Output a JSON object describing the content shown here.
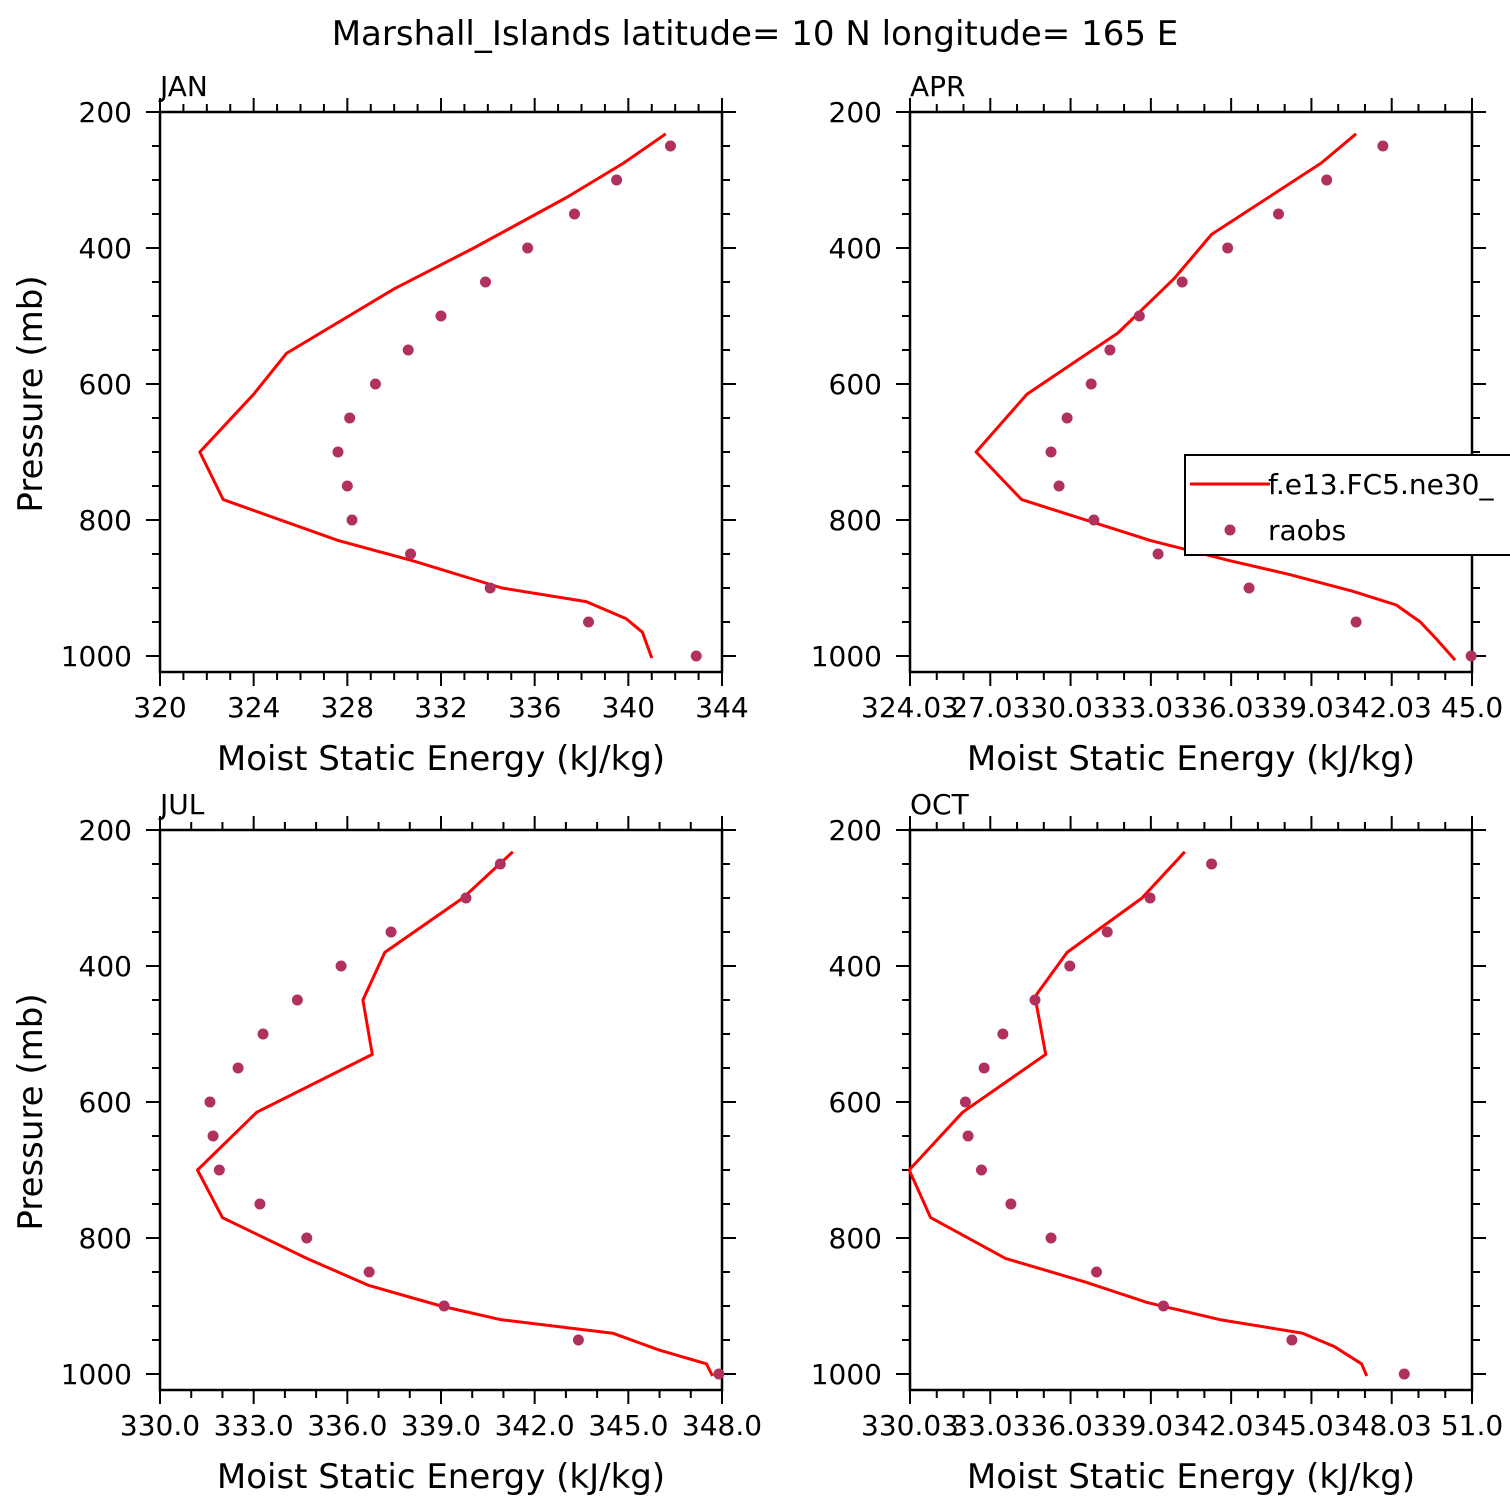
{
  "figure_title": "Marshall_Islands  latitude= 10 N longitude= 165 E",
  "legend": {
    "model_label": "f.e13.FC5.ne30_",
    "obs_label": "raobs"
  },
  "colors": {
    "model": "#ff0000",
    "obs": "#b03060",
    "axis": "#000000"
  },
  "chart_data": [
    {
      "type": "line",
      "title": "JAN",
      "xlabel": "Moist Static Energy (kJ/kg)",
      "ylabel": "Pressure (mb)",
      "xlim": [
        320,
        344
      ],
      "ylim": [
        200,
        1000
      ],
      "x_ticks": [
        320,
        324,
        328,
        332,
        336,
        340,
        344
      ],
      "x_tick_labels": [
        "320",
        "324",
        "328",
        "332",
        "336",
        "340",
        "344"
      ],
      "y_ticks": [
        200,
        400,
        600,
        800,
        1000
      ],
      "y_tick_labels": [
        "200",
        "400",
        "600",
        "800",
        "1000"
      ],
      "series": [
        {
          "name": "f.e13.FC5.ne30_",
          "style": "line",
          "x": [
            341.6,
            339.8,
            337.4,
            333.4,
            330.0,
            325.4,
            324.0,
            321.7,
            322.7,
            327.6,
            330.8,
            334.6,
            338.2,
            339.9,
            340.6,
            341.0
          ],
          "y": [
            232,
            275,
            325,
            400,
            460,
            555,
            615,
            700,
            770,
            830,
            860,
            900,
            920,
            945,
            965,
            1003
          ]
        },
        {
          "name": "raobs",
          "style": "markers",
          "x": [
            341.8,
            339.5,
            337.7,
            335.7,
            333.9,
            332.0,
            330.6,
            329.2,
            328.1,
            327.6,
            328.0,
            328.2,
            330.7,
            334.1,
            338.3,
            342.9
          ],
          "y": [
            250,
            300,
            350,
            400,
            450,
            500,
            550,
            600,
            650,
            700,
            750,
            800,
            850,
            900,
            950,
            1000
          ]
        }
      ]
    },
    {
      "type": "line",
      "title": "APR",
      "xlabel": "Moist Static Energy (kJ/kg)",
      "ylabel": "",
      "xlim": [
        324.03,
        345.03
      ],
      "ylim": [
        200,
        1000
      ],
      "x_ticks": [
        324.03,
        327.03,
        330.03,
        333.03,
        336.03,
        339.03,
        342.03,
        345.03
      ],
      "x_tick_labels": [
        "324.03",
        "27.03",
        "30.03",
        "33.03",
        "36.03",
        "39.03",
        "42.03",
        "45.0"
      ],
      "y_ticks": [
        200,
        400,
        600,
        800,
        1000
      ],
      "y_tick_labels": [
        "200",
        "400",
        "600",
        "800",
        "1000"
      ],
      "series": [
        {
          "name": "f.e13.FC5.ne30_",
          "style": "line",
          "x": [
            340.7,
            339.4,
            335.3,
            333.9,
            331.8,
            328.4,
            326.5,
            328.2,
            333.0,
            336.0,
            338.2,
            340.6,
            342.2,
            343.1,
            343.7,
            344.4
          ],
          "y": [
            232,
            275,
            380,
            445,
            525,
            615,
            700,
            770,
            830,
            860,
            880,
            905,
            925,
            950,
            975,
            1006
          ]
        },
        {
          "name": "raobs",
          "style": "markers",
          "x": [
            341.7,
            339.6,
            337.8,
            335.9,
            334.2,
            332.6,
            331.5,
            330.8,
            329.9,
            329.3,
            329.6,
            330.9,
            333.3,
            336.7,
            340.7,
            345.0
          ],
          "y": [
            250,
            300,
            350,
            400,
            450,
            500,
            550,
            600,
            650,
            700,
            750,
            800,
            850,
            900,
            950,
            1000
          ]
        }
      ]
    },
    {
      "type": "line",
      "title": "JUL",
      "xlabel": "Moist Static Energy (kJ/kg)",
      "ylabel": "Pressure (mb)",
      "xlim": [
        330.0,
        348.0
      ],
      "ylim": [
        200,
        1000
      ],
      "x_ticks": [
        330.0,
        333.0,
        336.0,
        339.0,
        342.0,
        345.0,
        348.0
      ],
      "x_tick_labels": [
        "330.0",
        "333.0",
        "336.0",
        "339.0",
        "342.0",
        "345.0",
        "348.0"
      ],
      "y_ticks": [
        200,
        400,
        600,
        800,
        1000
      ],
      "y_tick_labels": [
        "200",
        "400",
        "600",
        "800",
        "1000"
      ],
      "series": [
        {
          "name": "f.e13.FC5.ne30_",
          "style": "line",
          "x": [
            341.3,
            339.7,
            337.2,
            336.5,
            336.8,
            333.1,
            331.2,
            332.0,
            334.7,
            336.7,
            339.0,
            340.9,
            344.5,
            346.0,
            347.5,
            347.7
          ],
          "y": [
            232,
            300,
            380,
            450,
            530,
            615,
            700,
            770,
            830,
            870,
            900,
            920,
            940,
            965,
            985,
            1003
          ]
        },
        {
          "name": "raobs",
          "style": "markers",
          "x": [
            340.9,
            339.8,
            337.4,
            335.8,
            334.4,
            333.3,
            332.5,
            331.6,
            331.7,
            331.9,
            333.2,
            334.7,
            336.7,
            339.1,
            343.4,
            347.9
          ],
          "y": [
            250,
            300,
            350,
            400,
            450,
            500,
            550,
            600,
            650,
            700,
            750,
            800,
            850,
            900,
            950,
            1000
          ]
        }
      ]
    },
    {
      "type": "line",
      "title": "OCT",
      "xlabel": "Moist Static Energy (kJ/kg)",
      "ylabel": "",
      "xlim": [
        330.03,
        351.03
      ],
      "ylim": [
        200,
        1000
      ],
      "x_ticks": [
        330.03,
        333.03,
        336.03,
        339.03,
        342.03,
        345.03,
        348.03,
        351.03
      ],
      "x_tick_labels": [
        "330.03",
        "33.03",
        "36.03",
        "39.03",
        "42.03",
        "45.03",
        "48.03",
        "51.0"
      ],
      "y_ticks": [
        200,
        400,
        600,
        800,
        1000
      ],
      "y_tick_labels": [
        "200",
        "400",
        "600",
        "800",
        "1000"
      ],
      "series": [
        {
          "name": "f.e13.FC5.ne30_",
          "style": "line",
          "x": [
            340.3,
            338.7,
            335.9,
            334.7,
            335.1,
            332.0,
            330.0,
            330.8,
            333.6,
            336.6,
            338.9,
            341.6,
            344.7,
            345.9,
            346.9,
            347.1
          ],
          "y": [
            232,
            300,
            380,
            445,
            530,
            615,
            700,
            770,
            830,
            865,
            895,
            920,
            940,
            960,
            985,
            1003
          ]
        },
        {
          "name": "raobs",
          "style": "markers",
          "x": [
            341.3,
            339.0,
            337.4,
            336.0,
            334.7,
            333.5,
            332.8,
            332.1,
            332.2,
            332.7,
            333.8,
            335.3,
            337.0,
            339.5,
            344.3,
            348.5
          ],
          "y": [
            250,
            300,
            350,
            400,
            450,
            500,
            550,
            600,
            650,
            700,
            750,
            800,
            850,
            900,
            950,
            1000
          ]
        }
      ]
    }
  ]
}
